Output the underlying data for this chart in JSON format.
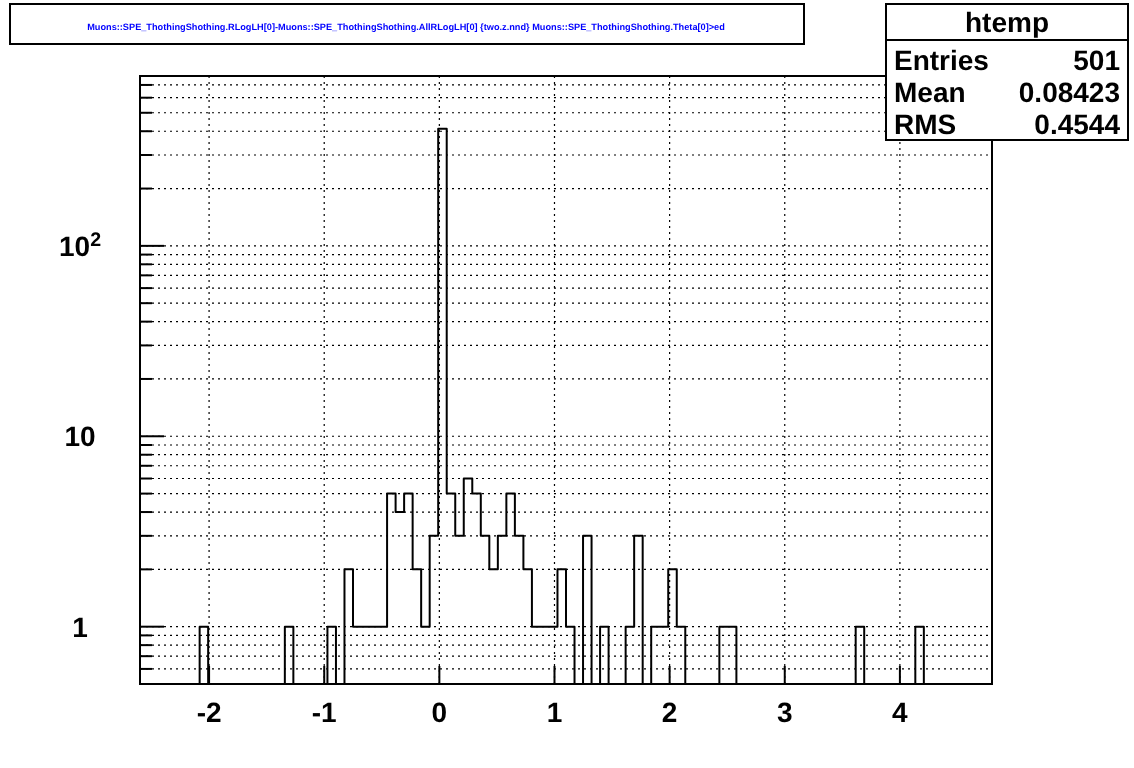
{
  "chart_data": {
    "type": "histogram",
    "title": "Muons::SPE_ThothingShothing.RLogLH[0]-Muons::SPE_ThothingShothing.AllRLogLH[0] {two.z.nnd} Muons::SPE_ThothingShothing.Theta[0]>ed",
    "annotations": [
      "htemp",
      "Entries",
      "501",
      "Mean",
      "0.08423",
      "RMS",
      "0.4544"
    ],
    "bins": [
      -2.6,
      -2.526,
      -2.452,
      -2.378,
      -2.304,
      -2.23,
      -2.156,
      -2.082,
      -2.008,
      -1.934,
      -1.86,
      -1.786,
      -1.712,
      -1.638,
      -1.564,
      -1.49,
      -1.416,
      -1.342,
      -1.268,
      -1.194,
      -1.12,
      -1.046,
      -0.972,
      -0.898,
      -0.824,
      -0.75,
      -0.676,
      -0.602,
      -0.528,
      -0.454,
      -0.38,
      -0.306,
      -0.232,
      -0.158,
      -0.084,
      -0.01,
      0.064,
      0.138,
      0.212,
      0.286,
      0.36,
      0.434,
      0.508,
      0.582,
      0.656,
      0.73,
      0.804,
      0.878,
      0.952,
      1.026,
      1.1,
      1.174,
      1.248,
      1.322,
      1.396,
      1.47,
      1.544,
      1.618,
      1.692,
      1.766,
      1.84,
      1.914,
      1.988,
      2.062,
      2.136,
      2.21,
      2.284,
      2.358,
      2.432,
      2.506,
      2.58,
      2.654,
      2.728,
      2.802,
      2.876,
      2.95,
      3.024,
      3.098,
      3.172,
      3.246,
      3.32,
      3.394,
      3.468,
      3.542,
      3.616,
      3.69,
      3.764,
      3.838,
      3.912,
      3.986,
      4.06,
      4.134,
      4.208,
      4.282,
      4.356,
      4.43,
      4.504,
      4.578,
      4.652,
      4.726,
      4.8
    ],
    "values": [
      null,
      null,
      null,
      null,
      null,
      null,
      null,
      1,
      null,
      null,
      null,
      null,
      null,
      null,
      null,
      null,
      null,
      1,
      null,
      null,
      null,
      null,
      1,
      null,
      2,
      1,
      1,
      1,
      1,
      5,
      4,
      5,
      2,
      1,
      3,
      412,
      5,
      3,
      6,
      5,
      3,
      2,
      3,
      5,
      3,
      2,
      1,
      1,
      1,
      2,
      1,
      null,
      3,
      null,
      1,
      null,
      null,
      1,
      3,
      null,
      1,
      1,
      2,
      1,
      null,
      null,
      null,
      null,
      1,
      1,
      null,
      null,
      null,
      null,
      null,
      null,
      null,
      null,
      null,
      null,
      null,
      null,
      null,
      null,
      1,
      null,
      null,
      null,
      null,
      null,
      null,
      1,
      null,
      null,
      null,
      null,
      null,
      null,
      null,
      null
    ],
    "color": "#000000",
    "log": "y",
    "grid": true,
    "xlim": [
      -2.6,
      4.8
    ],
    "xticks": [
      -2,
      -1,
      0,
      1,
      2,
      3,
      4
    ],
    "ylim": [
      0.5,
      780
    ],
    "yticks": [
      {
        "value": 0.6,
        "label": null
      },
      {
        "value": 0.7,
        "label": null
      },
      {
        "value": 0.8,
        "label": null
      },
      {
        "value": 0.9,
        "label": null
      },
      1,
      {
        "value": 2,
        "label": null
      },
      {
        "value": 3,
        "label": null
      },
      {
        "value": 4,
        "label": null
      },
      {
        "value": 5,
        "label": null
      },
      {
        "value": 6,
        "label": null
      },
      {
        "value": 7,
        "label": null
      },
      {
        "value": 8,
        "label": null
      },
      {
        "value": 9,
        "label": null
      },
      10,
      {
        "value": 20,
        "label": null
      },
      {
        "value": 30,
        "label": null
      },
      {
        "value": 40,
        "label": null
      },
      {
        "value": 50,
        "label": null
      },
      {
        "value": 60,
        "label": null
      },
      {
        "value": 70,
        "label": null
      },
      {
        "value": 80,
        "label": null
      },
      {
        "value": 90,
        "label": null
      },
      {
        "value": 100,
        "label": "10$^{2}$"
      },
      {
        "value": 200,
        "label": null
      },
      {
        "value": 300,
        "label": null
      },
      {
        "value": 400,
        "label": null
      },
      {
        "value": 500,
        "label": null
      },
      {
        "value": 600,
        "label": null
      },
      {
        "value": 700,
        "label": null
      }
    ]
  }
}
